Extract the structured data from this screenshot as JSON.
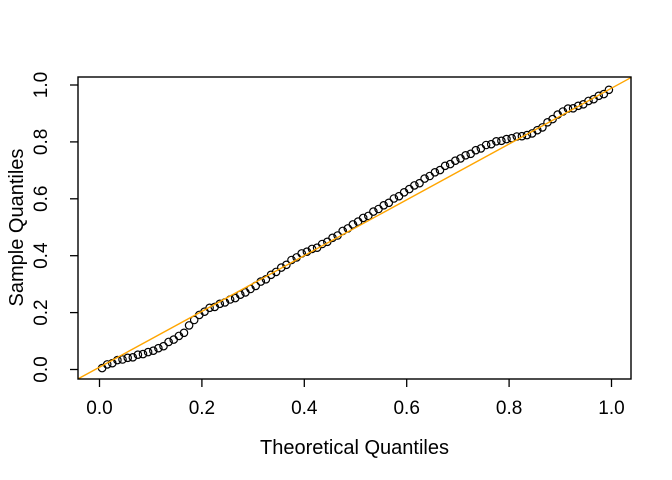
{
  "figure": {
    "background_color": "#ffffff",
    "plot_background_color": "#ffffff",
    "border_color": "#000000"
  },
  "chart_data": {
    "type": "scatter",
    "title": "",
    "xlabel": "Theoretical Quantiles",
    "ylabel": "Sample Quantiles",
    "xlim": [
      0,
      1
    ],
    "ylim": [
      0,
      1
    ],
    "grid": false,
    "x_tick_labels": [
      "0.0",
      "0.2",
      "0.4",
      "0.6",
      "0.8",
      "1.0"
    ],
    "y_tick_labels": [
      "0.0",
      "0.2",
      "0.4",
      "0.6",
      "0.8",
      "1.0"
    ],
    "marker": {
      "shape": "open-circle",
      "color": "#000000"
    },
    "ref_line": {
      "equation": "y = x",
      "color": "#FFA500",
      "x1": -0.042,
      "y1": -0.033,
      "x2": 1.039,
      "y2": 1.027
    },
    "points": {
      "x": [
        0.005,
        0.015,
        0.025,
        0.035,
        0.045,
        0.055,
        0.065,
        0.075,
        0.085,
        0.095,
        0.105,
        0.115,
        0.125,
        0.135,
        0.145,
        0.155,
        0.165,
        0.175,
        0.185,
        0.195,
        0.205,
        0.215,
        0.225,
        0.235,
        0.245,
        0.255,
        0.265,
        0.275,
        0.285,
        0.295,
        0.305,
        0.315,
        0.325,
        0.335,
        0.345,
        0.355,
        0.365,
        0.375,
        0.385,
        0.395,
        0.405,
        0.415,
        0.425,
        0.435,
        0.445,
        0.455,
        0.465,
        0.475,
        0.485,
        0.495,
        0.505,
        0.515,
        0.525,
        0.535,
        0.545,
        0.555,
        0.565,
        0.575,
        0.585,
        0.595,
        0.605,
        0.615,
        0.625,
        0.635,
        0.645,
        0.655,
        0.665,
        0.675,
        0.685,
        0.695,
        0.705,
        0.715,
        0.725,
        0.735,
        0.745,
        0.755,
        0.765,
        0.775,
        0.785,
        0.795,
        0.805,
        0.815,
        0.825,
        0.835,
        0.845,
        0.855,
        0.865,
        0.875,
        0.885,
        0.895,
        0.905,
        0.915,
        0.925,
        0.935,
        0.945,
        0.955,
        0.965,
        0.975,
        0.985,
        0.995
      ],
      "y": [
        0.005,
        0.018,
        0.022,
        0.033,
        0.035,
        0.041,
        0.043,
        0.052,
        0.054,
        0.061,
        0.066,
        0.075,
        0.082,
        0.097,
        0.105,
        0.118,
        0.129,
        0.155,
        0.174,
        0.192,
        0.203,
        0.217,
        0.22,
        0.231,
        0.236,
        0.246,
        0.251,
        0.263,
        0.271,
        0.283,
        0.294,
        0.309,
        0.317,
        0.333,
        0.343,
        0.358,
        0.368,
        0.385,
        0.394,
        0.408,
        0.414,
        0.424,
        0.428,
        0.441,
        0.449,
        0.463,
        0.471,
        0.487,
        0.496,
        0.51,
        0.52,
        0.533,
        0.54,
        0.555,
        0.564,
        0.577,
        0.586,
        0.601,
        0.609,
        0.623,
        0.634,
        0.647,
        0.655,
        0.671,
        0.68,
        0.693,
        0.701,
        0.716,
        0.722,
        0.734,
        0.742,
        0.753,
        0.758,
        0.771,
        0.777,
        0.789,
        0.792,
        0.802,
        0.804,
        0.81,
        0.813,
        0.819,
        0.82,
        0.824,
        0.83,
        0.841,
        0.851,
        0.869,
        0.88,
        0.896,
        0.907,
        0.917,
        0.918,
        0.927,
        0.932,
        0.944,
        0.95,
        0.962,
        0.968,
        0.983
      ]
    }
  }
}
